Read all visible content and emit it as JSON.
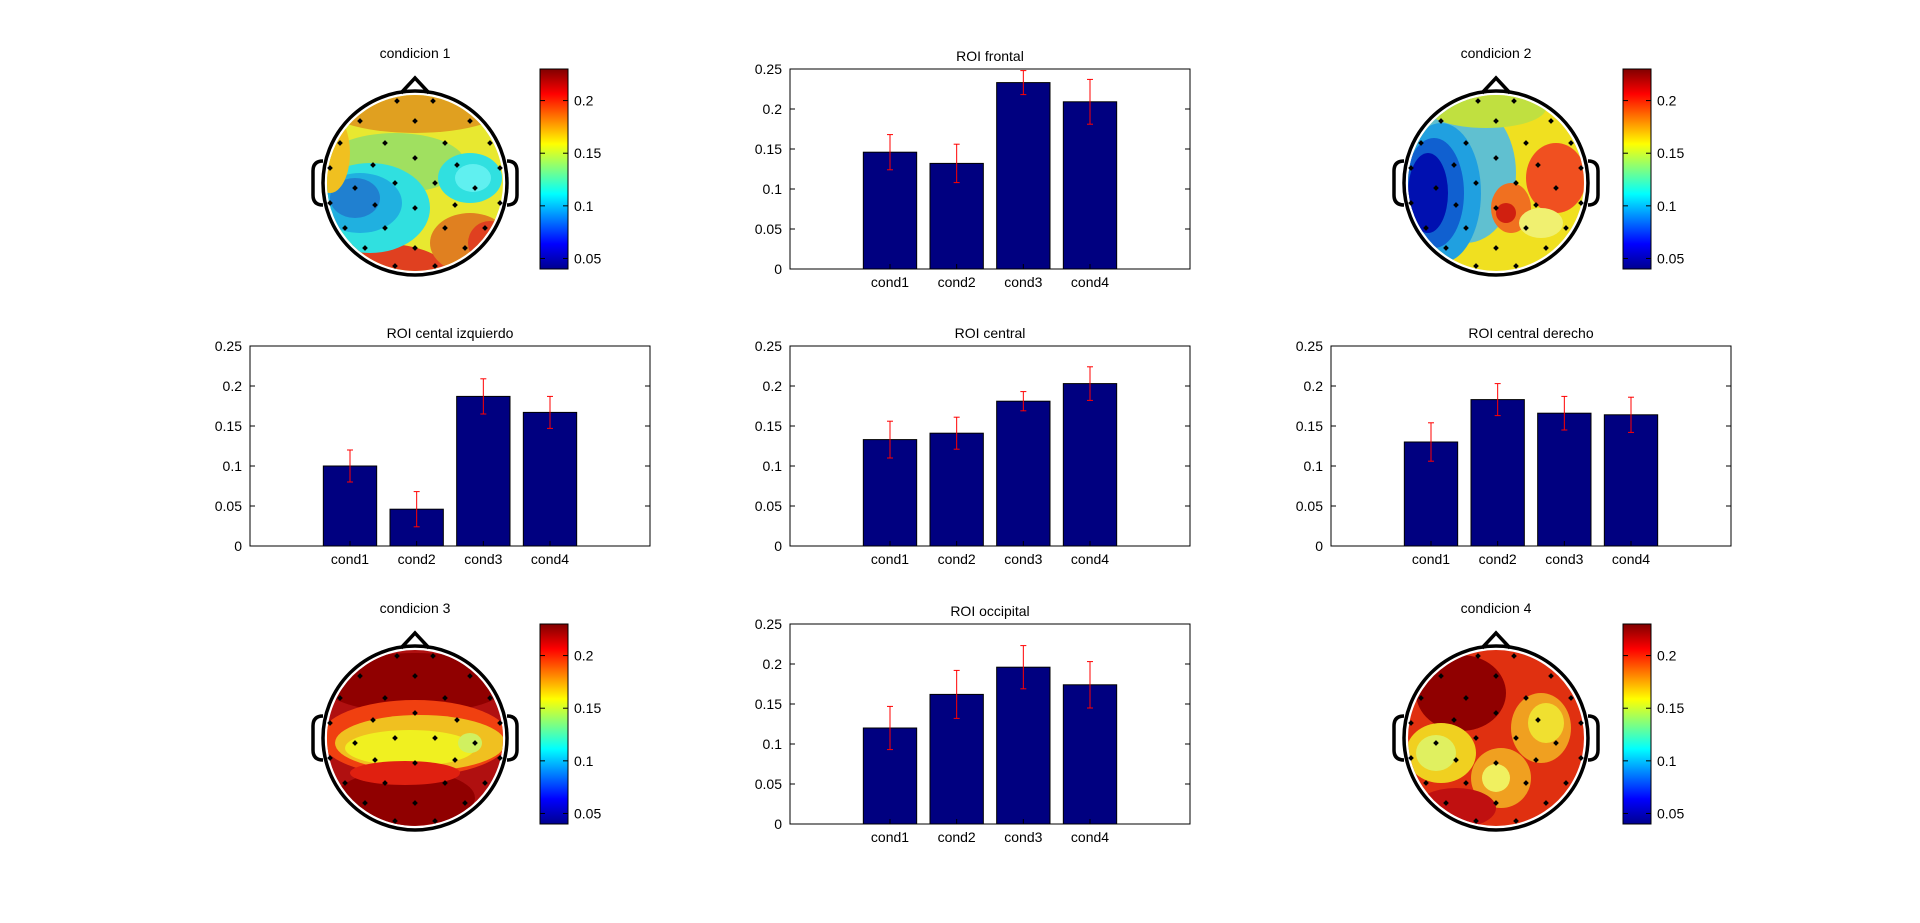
{
  "figure_colors": {
    "bar": "#000080",
    "errorbar": "#ff0000",
    "axis": "#000000",
    "background": "#ffffff"
  },
  "colorbar": {
    "ticks": [
      "0.05",
      "0.1",
      "0.15",
      "0.2"
    ],
    "tick_values": [
      0.05,
      0.1,
      0.15,
      0.2
    ],
    "range": [
      0.04,
      0.23
    ]
  },
  "topoplots": [
    {
      "title": "condicion 1",
      "min_location": "left",
      "max_location": "rim"
    },
    {
      "title": "condicion 2",
      "min_location": "left",
      "max_location": "right-center"
    },
    {
      "title": "condicion 3",
      "min_location": "none",
      "max_location": "front-back"
    },
    {
      "title": "condicion 4",
      "min_location": "none",
      "max_location": "left-front"
    }
  ],
  "chart_data": [
    {
      "type": "bar",
      "title": "ROI frontal",
      "categories": [
        "cond1",
        "cond2",
        "cond3",
        "cond4"
      ],
      "values": [
        0.146,
        0.132,
        0.233,
        0.209
      ],
      "errors": [
        0.022,
        0.024,
        0.015,
        0.028
      ],
      "ylim": [
        0,
        0.25
      ],
      "yticks": [
        "0",
        "0.05",
        "0.1",
        "0.15",
        "0.2",
        "0.25"
      ],
      "ytick_values": [
        0,
        0.05,
        0.1,
        0.15,
        0.2,
        0.25
      ],
      "xlabel": "",
      "ylabel": ""
    },
    {
      "type": "bar",
      "title": "ROI cental izquierdo",
      "categories": [
        "cond1",
        "cond2",
        "cond3",
        "cond4"
      ],
      "values": [
        0.1,
        0.046,
        0.187,
        0.167
      ],
      "errors": [
        0.02,
        0.022,
        0.022,
        0.02
      ],
      "ylim": [
        0,
        0.25
      ],
      "yticks": [
        "0",
        "0.05",
        "0.1",
        "0.15",
        "0.2",
        "0.25"
      ],
      "ytick_values": [
        0,
        0.05,
        0.1,
        0.15,
        0.2,
        0.25
      ],
      "xlabel": "",
      "ylabel": ""
    },
    {
      "type": "bar",
      "title": "ROI central",
      "categories": [
        "cond1",
        "cond2",
        "cond3",
        "cond4"
      ],
      "values": [
        0.133,
        0.141,
        0.181,
        0.203
      ],
      "errors": [
        0.023,
        0.02,
        0.012,
        0.021
      ],
      "ylim": [
        0,
        0.25
      ],
      "yticks": [
        "0",
        "0.05",
        "0.1",
        "0.15",
        "0.2",
        "0.25"
      ],
      "ytick_values": [
        0,
        0.05,
        0.1,
        0.15,
        0.2,
        0.25
      ],
      "xlabel": "",
      "ylabel": ""
    },
    {
      "type": "bar",
      "title": "ROI central derecho",
      "categories": [
        "cond1",
        "cond2",
        "cond3",
        "cond4"
      ],
      "values": [
        0.13,
        0.183,
        0.166,
        0.164
      ],
      "errors": [
        0.024,
        0.02,
        0.021,
        0.022
      ],
      "ylim": [
        0,
        0.25
      ],
      "yticks": [
        "0",
        "0.05",
        "0.1",
        "0.15",
        "0.2",
        "0.25"
      ],
      "ytick_values": [
        0,
        0.05,
        0.1,
        0.15,
        0.2,
        0.25
      ],
      "xlabel": "",
      "ylabel": ""
    },
    {
      "type": "bar",
      "title": "ROI occipital",
      "categories": [
        "cond1",
        "cond2",
        "cond3",
        "cond4"
      ],
      "values": [
        0.12,
        0.162,
        0.196,
        0.174
      ],
      "errors": [
        0.027,
        0.03,
        0.027,
        0.029
      ],
      "ylim": [
        0,
        0.25
      ],
      "yticks": [
        "0",
        "0.05",
        "0.1",
        "0.15",
        "0.2",
        "0.25"
      ],
      "ytick_values": [
        0,
        0.05,
        0.1,
        0.15,
        0.2,
        0.25
      ],
      "xlabel": "",
      "ylabel": ""
    }
  ]
}
